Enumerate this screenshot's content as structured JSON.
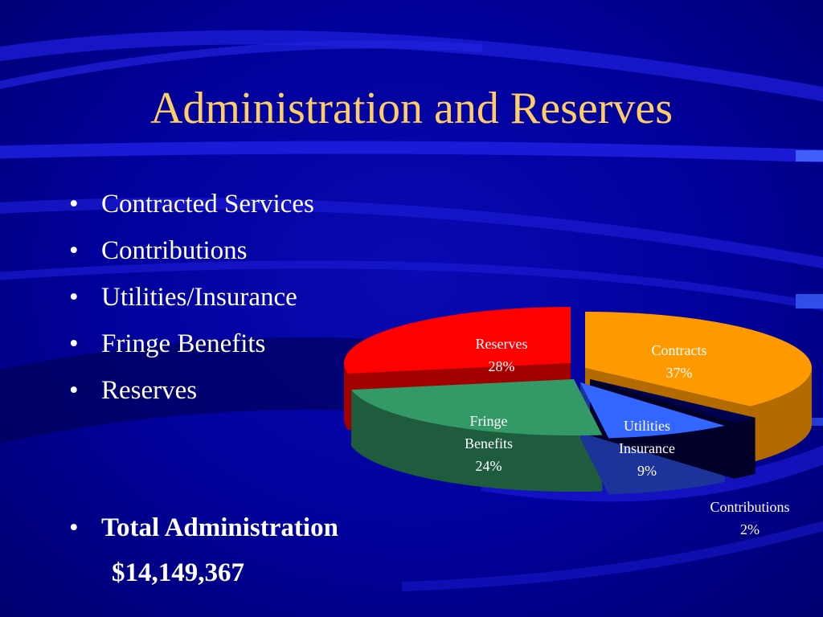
{
  "slide": {
    "title": "Administration and Reserves",
    "bullets": [
      "Contracted Services",
      "Contributions",
      "Utilities/Insurance",
      "Fringe Benefits",
      "Reserves"
    ],
    "total_label": "Total Administration",
    "total_value": "$14,149,367"
  },
  "colors": {
    "background": "#00009a",
    "title": "#ffcc66",
    "text": "#ffffff"
  },
  "chart_data": {
    "type": "pie",
    "title": "",
    "slices": [
      {
        "label": "Contracts",
        "label_lines": [
          "Contracts",
          "37%"
        ],
        "value": 37,
        "color": "#ff9900",
        "side": "#b36b00",
        "text": "#ffffff"
      },
      {
        "label": "Contributions",
        "label_lines": [
          "Contributions",
          "2%"
        ],
        "value": 2,
        "color": "#000050",
        "side": "#000028",
        "text": "#ffffff"
      },
      {
        "label": "Utilities Insurance",
        "label_lines": [
          "Utilities",
          "Insurance",
          "9%"
        ],
        "value": 9,
        "color": "#3366ff",
        "side": "#1c3399",
        "text": "#ffffff"
      },
      {
        "label": "Fringe Benefits",
        "label_lines": [
          "Fringe",
          "Benefits",
          "24%"
        ],
        "value": 24,
        "color": "#339966",
        "side": "#1f5c3d",
        "text": "#ffffff"
      },
      {
        "label": "Reserves",
        "label_lines": [
          "Reserves",
          "28%"
        ],
        "value": 28,
        "color": "#ff0000",
        "side": "#a30000",
        "text": "#ffffff"
      }
    ]
  }
}
